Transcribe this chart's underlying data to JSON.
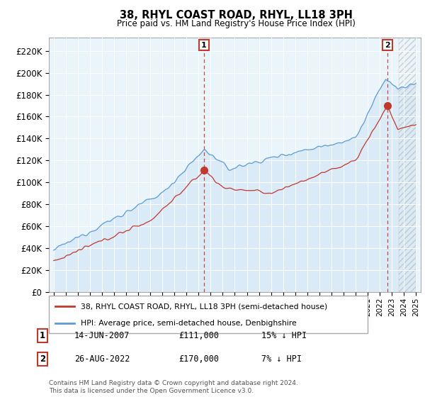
{
  "title": "38, RHYL COAST ROAD, RHYL, LL18 3PH",
  "subtitle": "Price paid vs. HM Land Registry's House Price Index (HPI)",
  "hpi_color": "#5b9bd5",
  "hpi_fill_color": "#daeaf7",
  "price_color": "#c0392b",
  "transaction1": {
    "date_label": "14-JUN-2007",
    "price": "£111,000",
    "pct": "15% ↓ HPI",
    "marker_x": 2007.45,
    "marker_y": 111000
  },
  "transaction2": {
    "date_label": "26-AUG-2022",
    "price": "£170,000",
    "pct": "7% ↓ HPI",
    "marker_x": 2022.65,
    "marker_y": 170000
  },
  "vline1_x": 2007.45,
  "vline2_x": 2022.65,
  "legend_label_red": "38, RHYL COAST ROAD, RHYL, LL18 3PH (semi-detached house)",
  "legend_label_blue": "HPI: Average price, semi-detached house, Denbighshire",
  "footer": "Contains HM Land Registry data © Crown copyright and database right 2024.\nThis data is licensed under the Open Government Licence v3.0.",
  "ytick_labels": [
    "£0",
    "£20K",
    "£40K",
    "£60K",
    "£80K",
    "£100K",
    "£120K",
    "£140K",
    "£160K",
    "£180K",
    "£200K",
    "£220K"
  ],
  "ytick_values": [
    0,
    20000,
    40000,
    60000,
    80000,
    100000,
    120000,
    140000,
    160000,
    180000,
    200000,
    220000
  ],
  "ylim": [
    0,
    232000
  ],
  "xlim": [
    1994.6,
    2025.4
  ]
}
